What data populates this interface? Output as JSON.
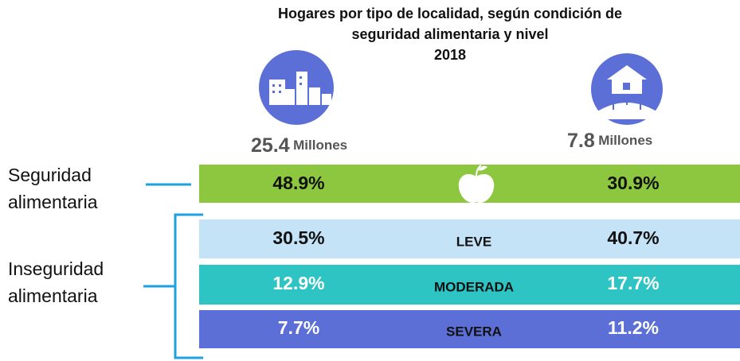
{
  "title": [
    "Hogares por tipo de localidad, según condición de",
    "seguridad alimentaria y nivel",
    "2018"
  ],
  "urban": {
    "number": "25.4",
    "unit": "Millones"
  },
  "rural": {
    "number": "7.8",
    "unit": "Millones"
  },
  "labels": {
    "security": [
      "Seguridad",
      "alimentaria"
    ],
    "insecurity": [
      "Inseguridad",
      "alimentaria"
    ]
  },
  "rows": [
    {
      "urban": "48.9%",
      "rural": "30.9%"
    },
    {
      "level": "LEVE",
      "urban": "30.5%",
      "rural": "40.7%"
    },
    {
      "level": "MODERADA",
      "urban": "12.9%",
      "rural": "17.7%"
    },
    {
      "level": "SEVERA",
      "urban": "7.7%",
      "rural": "11.2%"
    }
  ]
}
